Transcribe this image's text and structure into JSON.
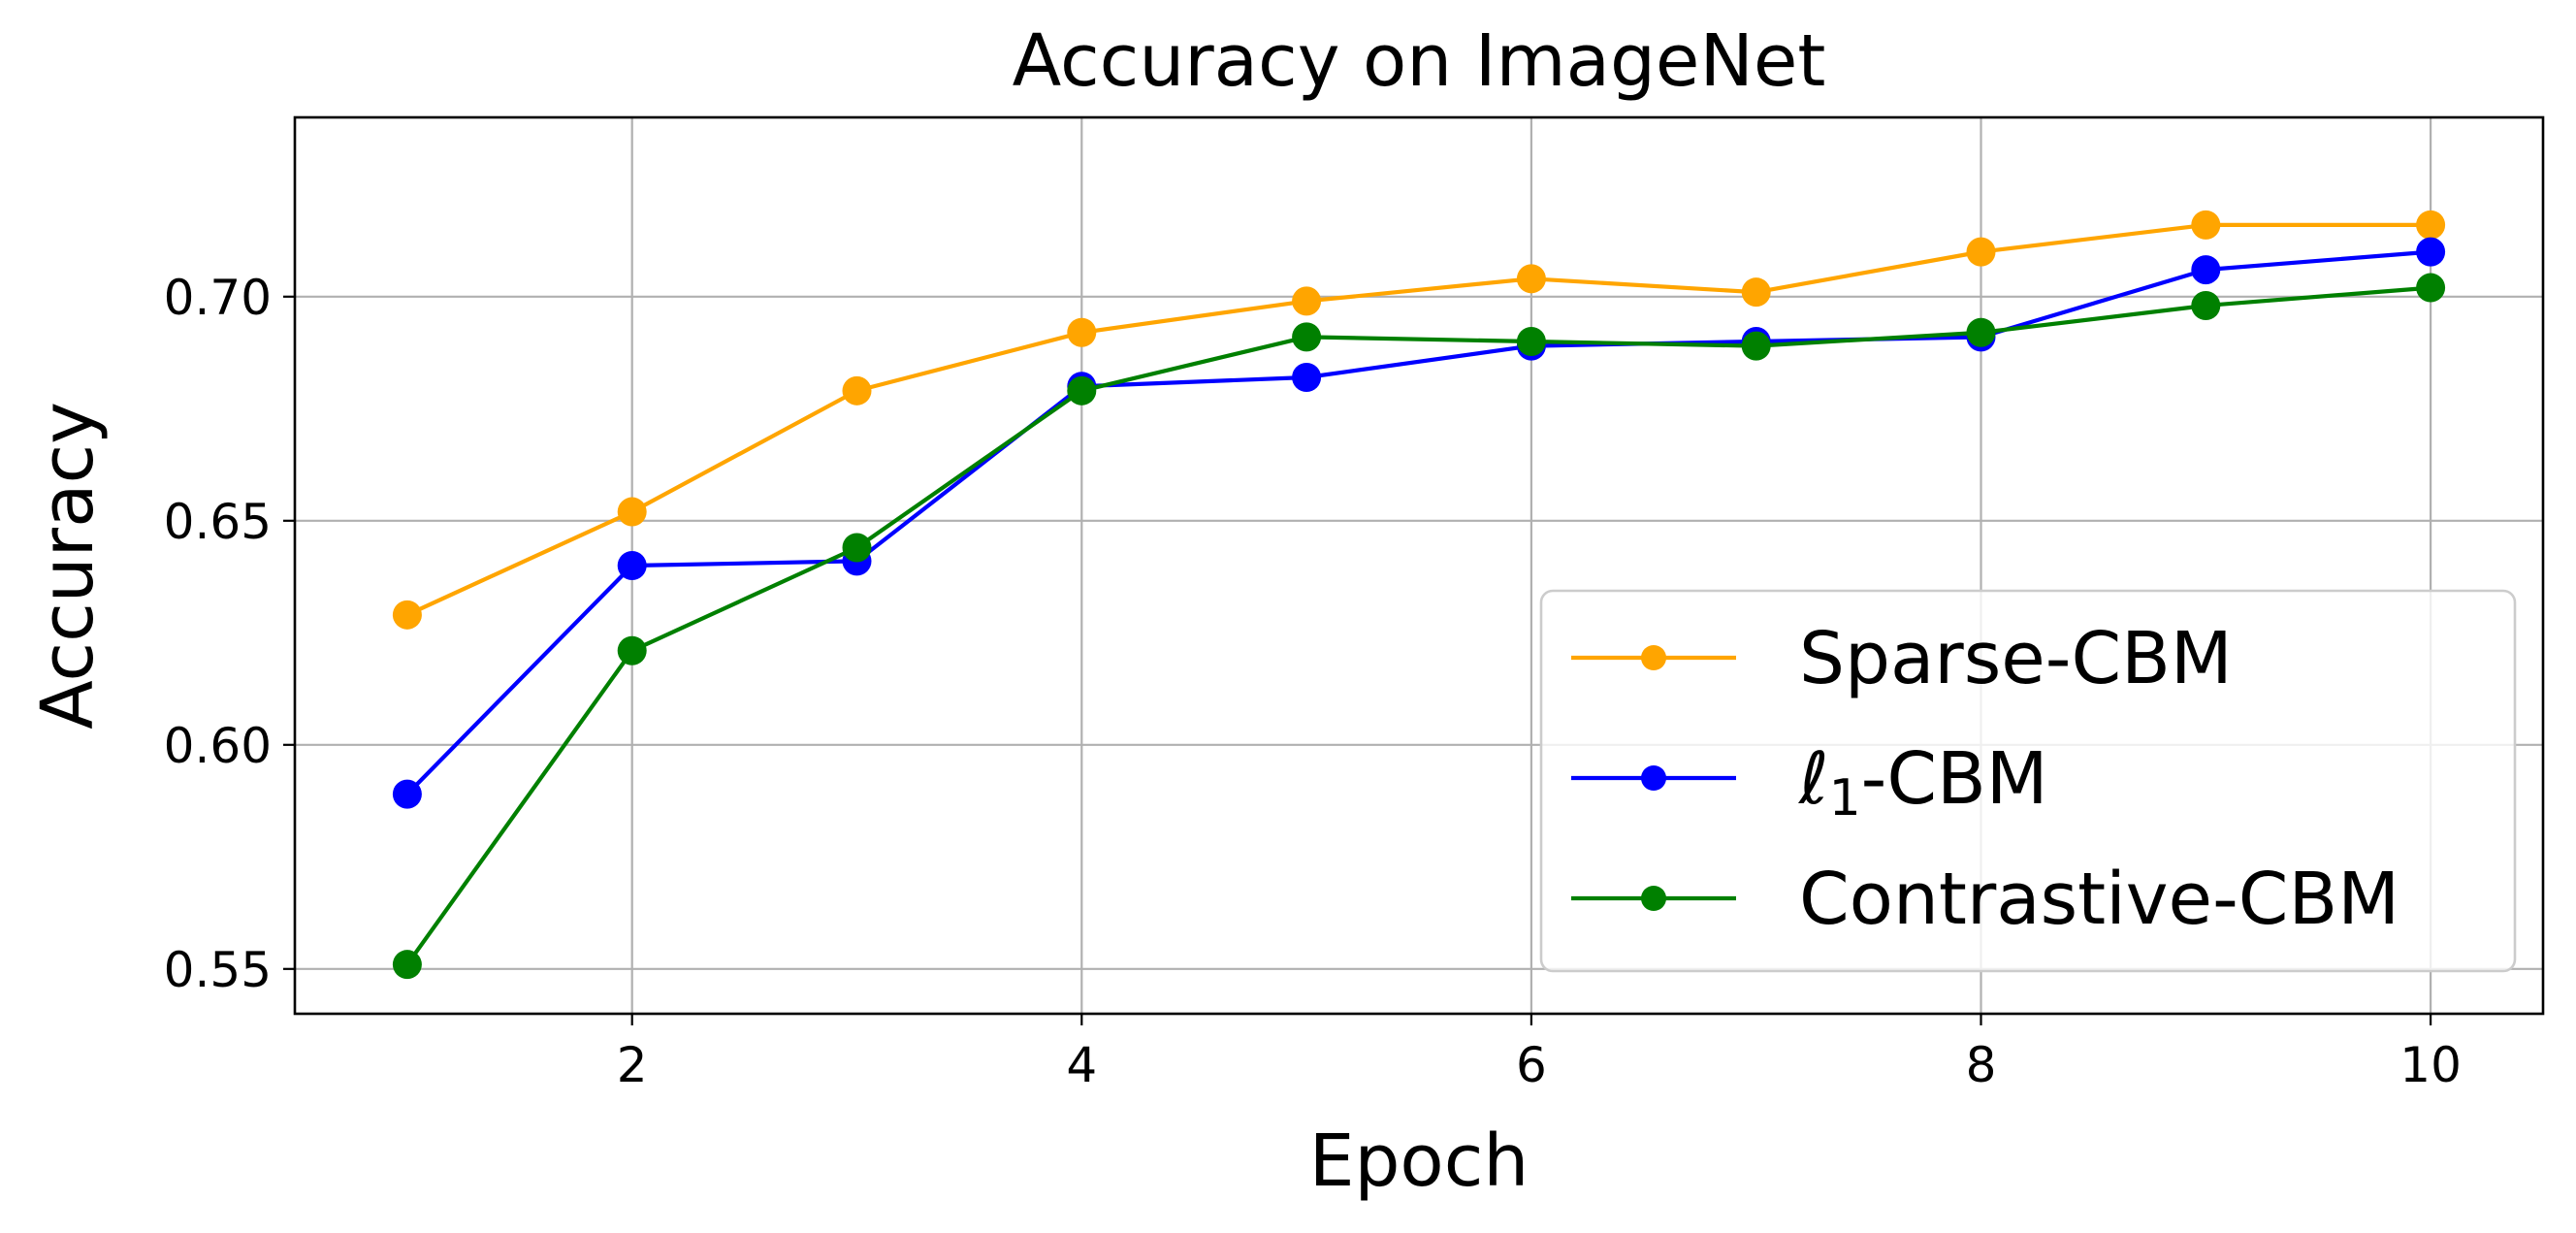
{
  "chart_data": {
    "type": "line",
    "title": "Accuracy on ImageNet",
    "xlabel": "Epoch",
    "ylabel": "Accuracy",
    "x": [
      1,
      2,
      3,
      4,
      5,
      6,
      7,
      8,
      9,
      10
    ],
    "xlim": [
      0.5,
      10.5
    ],
    "ylim": [
      0.54,
      0.74
    ],
    "xticks": [
      2,
      4,
      6,
      8,
      10
    ],
    "xtick_labels": [
      "2",
      "4",
      "6",
      "8",
      "10"
    ],
    "yticks": [
      0.55,
      0.6,
      0.65,
      0.7
    ],
    "ytick_labels": [
      "0.55",
      "0.60",
      "0.65",
      "0.70"
    ],
    "grid": true,
    "legend_position": "lower-right",
    "series": [
      {
        "name": "Sparse-CBM",
        "color": "#ffa500",
        "values": [
          0.629,
          0.652,
          0.679,
          0.692,
          0.699,
          0.704,
          0.701,
          0.71,
          0.716,
          0.716
        ]
      },
      {
        "name": "-CBM",
        "name_symbol": "ℓ",
        "name_subscript": "1",
        "color": "#0000ff",
        "values": [
          0.589,
          0.64,
          0.641,
          0.68,
          0.682,
          0.689,
          0.69,
          0.691,
          0.706,
          0.71
        ]
      },
      {
        "name": "Contrastive-CBM",
        "color": "#008000",
        "values": [
          0.551,
          0.621,
          0.644,
          0.679,
          0.691,
          0.69,
          0.689,
          0.692,
          0.698,
          0.702
        ]
      }
    ]
  }
}
